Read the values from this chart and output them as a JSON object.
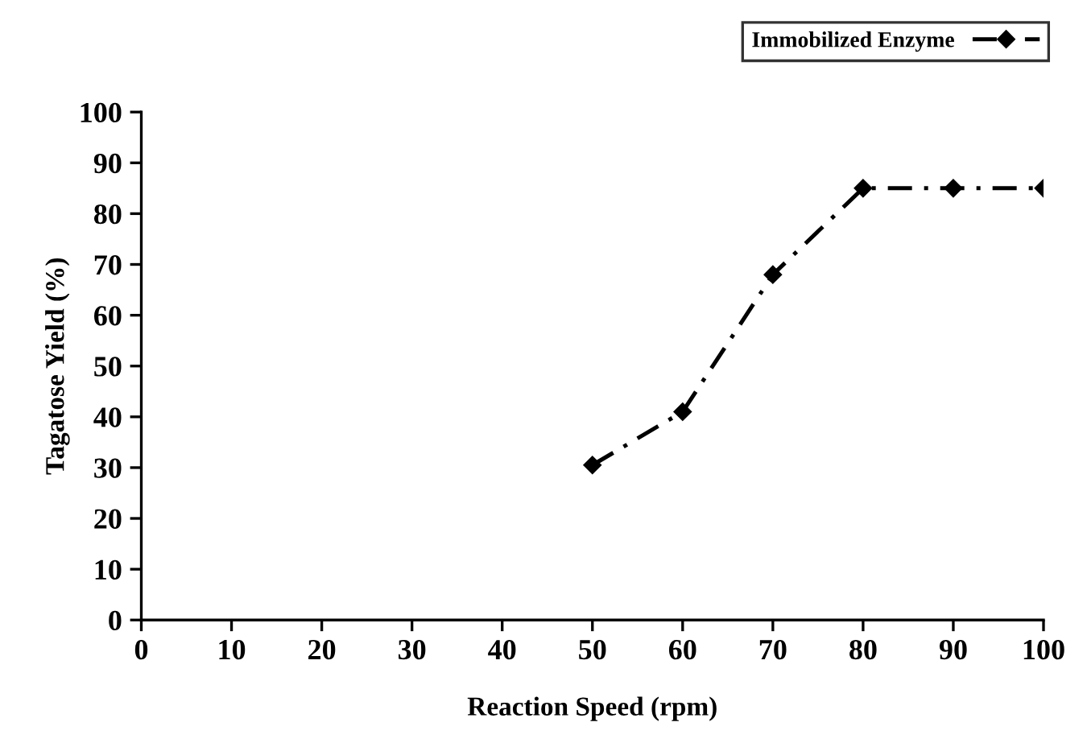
{
  "chart_data": {
    "type": "line",
    "xlabel": "Reaction Speed (rpm)",
    "ylabel": "Tagatose Yield (%)",
    "x": [
      50,
      60,
      70,
      80,
      90,
      100
    ],
    "series": [
      {
        "name": "Immobilized Enzyme",
        "color": "#000000",
        "values": [
          30.5,
          41,
          68,
          85,
          85,
          85
        ]
      }
    ],
    "xlim": [
      0,
      100
    ],
    "xticks": [
      0,
      10,
      20,
      30,
      40,
      50,
      60,
      70,
      80,
      90,
      100
    ],
    "ylim": [
      0,
      100
    ],
    "yticks": [
      0,
      10,
      20,
      30,
      40,
      50,
      60,
      70,
      80,
      90,
      100
    ],
    "grid": false,
    "legend": "top right",
    "marker": "diamond",
    "line_style": "dashed"
  }
}
